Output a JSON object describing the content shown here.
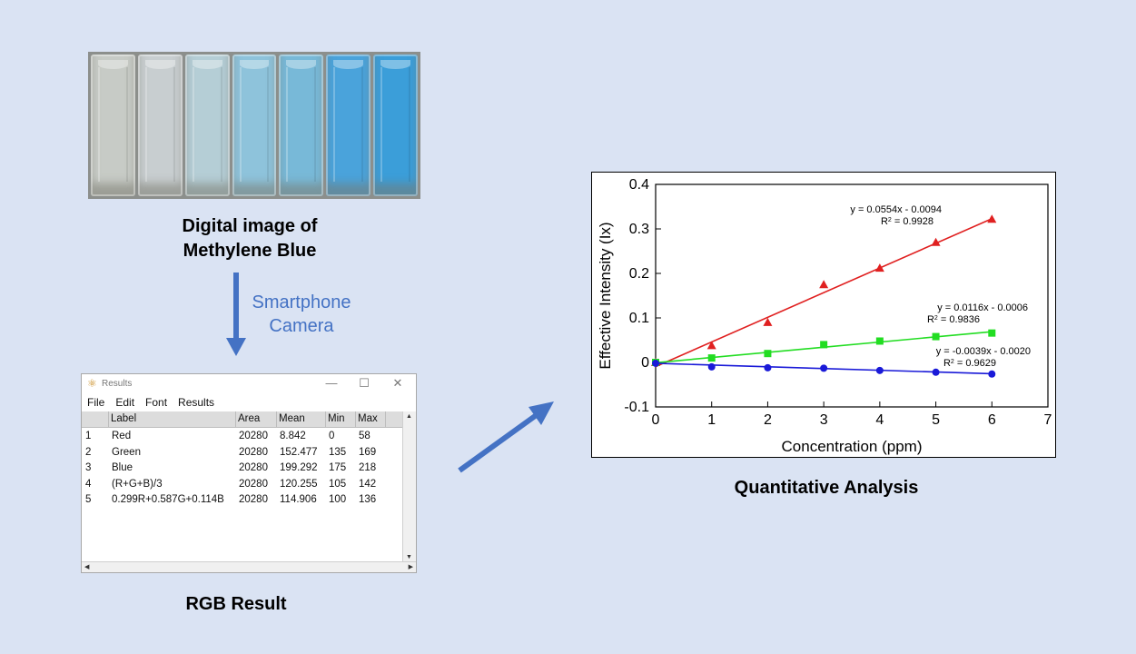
{
  "photo": {
    "caption_line1": "Digital image of",
    "caption_line2": "Methylene Blue",
    "cuvette_colors": [
      "#c7cbc6",
      "#c8ced0",
      "#b5ced6",
      "#8ec3db",
      "#78b9d8",
      "#4aa3db",
      "#3b9ed9"
    ]
  },
  "camera_label_line1": "Smartphone",
  "camera_label_line2": "Camera",
  "results_window": {
    "title": "Results",
    "menu": [
      "File",
      "Edit",
      "Font",
      "Results"
    ],
    "columns": [
      "",
      "Label",
      "Area",
      "Mean",
      "Min",
      "Max"
    ],
    "rows": [
      [
        "1",
        "Red",
        "20280",
        "8.842",
        "0",
        "58"
      ],
      [
        "2",
        "Green",
        "20280",
        "152.477",
        "135",
        "169"
      ],
      [
        "3",
        "Blue",
        "20280",
        "199.292",
        "175",
        "218"
      ],
      [
        "4",
        "(R+G+B)/3",
        "20280",
        "120.255",
        "105",
        "142"
      ],
      [
        "5",
        "0.299R+0.587G+0.114B",
        "20280",
        "114.906",
        "100",
        "136"
      ]
    ]
  },
  "rgb_caption": "RGB Result",
  "qa_caption": "Quantitative Analysis",
  "colors": {
    "arrow": "#4472c4",
    "background": "#dae3f3"
  },
  "chart_data": {
    "type": "scatter",
    "xlabel": "Concentration (ppm)",
    "ylabel": "Effective Intensity (Ix)",
    "xlim": [
      0,
      7
    ],
    "ylim": [
      -0.1,
      0.4
    ],
    "x_ticks": [
      0,
      1,
      2,
      3,
      4,
      5,
      6,
      7
    ],
    "y_ticks": [
      -0.1,
      0,
      0.1,
      0.2,
      0.3,
      0.4
    ],
    "y_tick_labels": [
      "-0.1",
      "0",
      "0.1",
      "0.2",
      "0.3",
      "0.4"
    ],
    "grid": false,
    "series": [
      {
        "color": "#e02020",
        "marker": "triangle",
        "x": [
          0,
          1,
          2,
          3,
          4,
          5,
          6
        ],
        "y": [
          0,
          0.038,
          0.09,
          0.175,
          0.212,
          0.27,
          0.322
        ],
        "fit": {
          "slope": 0.0554,
          "intercept": -0.0094
        },
        "equation": "y = 0.0554x - 0.0094",
        "r2_label": "R",
        "r2_value": " = 0.9928"
      },
      {
        "color": "#22dd22",
        "marker": "square",
        "x": [
          0,
          1,
          2,
          3,
          4,
          5,
          6
        ],
        "y": [
          0,
          0.01,
          0.02,
          0.04,
          0.048,
          0.058,
          0.066
        ],
        "fit": {
          "slope": 0.0116,
          "intercept": -0.0006
        },
        "equation": "y = 0.0116x - 0.0006",
        "r2_label": "R",
        "r2_value": " = 0.9836"
      },
      {
        "color": "#1a1ad8",
        "marker": "circle",
        "x": [
          0,
          1,
          2,
          3,
          4,
          5,
          6
        ],
        "y": [
          -0.002,
          -0.01,
          -0.012,
          -0.013,
          -0.018,
          -0.022,
          -0.026
        ],
        "fit": {
          "slope": -0.0039,
          "intercept": -0.002
        },
        "equation": "y = -0.0039x - 0.0020",
        "r2_label": "R",
        "r2_value": " = 0.9629"
      }
    ]
  }
}
